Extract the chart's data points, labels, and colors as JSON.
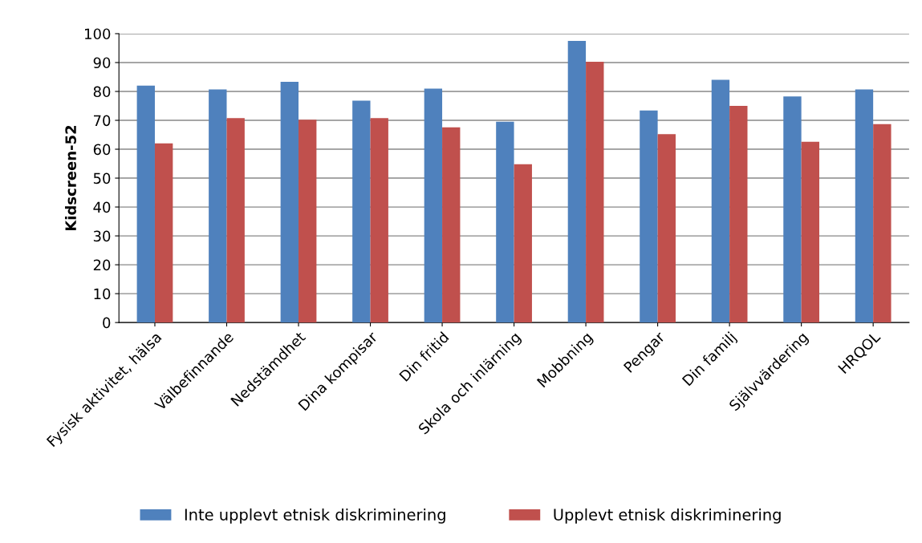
{
  "chart_data": {
    "type": "bar",
    "ylabel": "Kidscreen-52",
    "categories": [
      "Fysisk aktivitet, hälsa",
      "Välbefinnande",
      "Nedstämdhet",
      "Dina kompisar",
      "Din fritid",
      "Skola och inlärning",
      "Mobbning",
      "Pengar",
      "Din familj",
      "Självvärdering",
      "HRQOL"
    ],
    "series": [
      {
        "name": "Inte upplevt etnisk diskriminering",
        "color": "#4f81bd",
        "values": [
          82,
          80.7,
          83.3,
          76.8,
          81,
          69.5,
          97.5,
          73.4,
          84,
          78.3,
          80.7
        ]
      },
      {
        "name": "Upplevt etnisk diskriminering",
        "color": "#c0504d",
        "values": [
          62,
          70.8,
          70.2,
          70.8,
          67.6,
          54.8,
          90.3,
          65.2,
          75,
          62.6,
          68.7
        ]
      }
    ],
    "ylim": [
      0,
      100
    ],
    "yticks": [
      0,
      10,
      20,
      30,
      40,
      50,
      60,
      70,
      80,
      90,
      100
    ],
    "grid": "y",
    "legend": "bottom"
  }
}
